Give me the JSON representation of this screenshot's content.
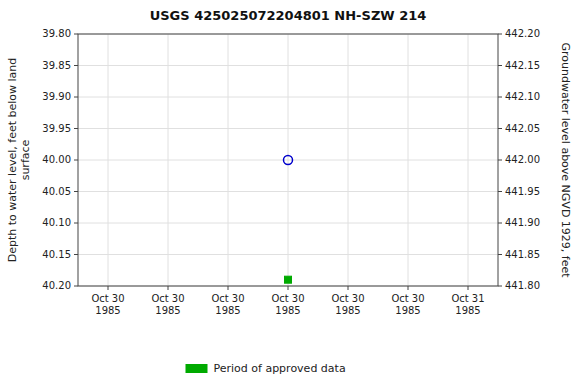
{
  "chart_data": {
    "type": "scatter",
    "title": "USGS 425025072204801 NH-SZW  214",
    "y_label": "Depth to water level, feet below land\nsurface",
    "y2_label": "Groundwater level above NGVD 1929, feet",
    "categories": [
      "Oct 30\n1985",
      "Oct 30\n1985",
      "Oct 30\n1985",
      "Oct 30\n1985",
      "Oct 30\n1985",
      "Oct 30\n1985",
      "Oct 31\n1985"
    ],
    "series": [
      {
        "color": "#0000cc",
        "marker": "circle-open",
        "values": [
          null,
          null,
          null,
          40.0,
          null,
          null,
          null
        ]
      },
      {
        "name": "Period of approved data",
        "color": "#00aa00",
        "marker": "square",
        "values": [
          null,
          null,
          null,
          40.19,
          null,
          null,
          null
        ]
      }
    ],
    "ylim": [
      40.2,
      39.8
    ],
    "yticks": [
      {
        "value": 39.8,
        "label": "39.80"
      },
      {
        "value": 39.85,
        "label": "39.85"
      },
      {
        "value": 39.9,
        "label": "39.90"
      },
      {
        "value": 39.95,
        "label": "39.95"
      },
      {
        "value": 40.0,
        "label": "40.00"
      },
      {
        "value": 40.05,
        "label": "40.05"
      },
      {
        "value": 40.1,
        "label": "40.10"
      },
      {
        "value": 40.15,
        "label": "40.15"
      },
      {
        "value": 40.2,
        "label": "40.20"
      }
    ],
    "y2lim": [
      441.8,
      442.2
    ],
    "y2ticks": [
      {
        "value": 441.8,
        "label": "441.80"
      },
      {
        "value": 441.85,
        "label": "441.85"
      },
      {
        "value": 441.9,
        "label": "441.90"
      },
      {
        "value": 441.95,
        "label": "441.95"
      },
      {
        "value": 442.0,
        "label": "442.00"
      },
      {
        "value": 442.05,
        "label": "442.05"
      },
      {
        "value": 442.1,
        "label": "442.10"
      },
      {
        "value": 442.15,
        "label": "442.15"
      },
      {
        "value": 442.2,
        "label": "442.20"
      }
    ],
    "grid": true,
    "legend": "bottom"
  }
}
